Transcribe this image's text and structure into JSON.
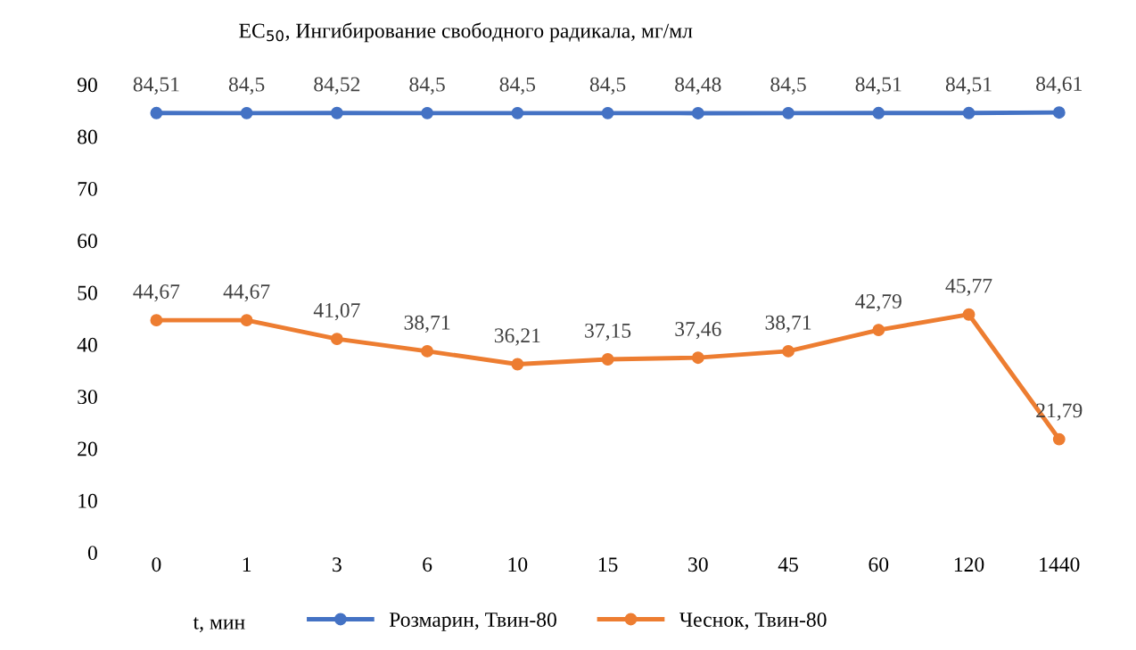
{
  "chart_data": {
    "type": "line",
    "title": "EC$_{50}$, Ингибирование свободного радикала, мг/мл",
    "xlabel": "t, мин",
    "categories": [
      "0",
      "1",
      "3",
      "6",
      "10",
      "15",
      "30",
      "45",
      "60",
      "120",
      "1440"
    ],
    "series": [
      {
        "name": "Розмарин, Твин-80",
        "color": "#4472c4",
        "values": [
          84.51,
          84.5,
          84.52,
          84.5,
          84.5,
          84.5,
          84.48,
          84.5,
          84.51,
          84.51,
          84.61
        ],
        "value_labels": [
          "84,51",
          "84,5",
          "84,52",
          "84,5",
          "84,5",
          "84,5",
          "84,48",
          "84,5",
          "84,51",
          "84,51",
          "84,61"
        ]
      },
      {
        "name": "Чеснок, Твин-80",
        "color": "#ed7d31",
        "values": [
          44.67,
          44.67,
          41.07,
          38.71,
          36.21,
          37.15,
          37.46,
          38.71,
          42.79,
          45.77,
          21.79
        ],
        "value_labels": [
          "44,67",
          "44,67",
          "41,07",
          "38,71",
          "36,21",
          "37,15",
          "37,46",
          "38,71",
          "42,79",
          "45,77",
          "21,79"
        ]
      }
    ],
    "ylim": [
      0,
      90
    ],
    "yticks": [
      0,
      10,
      20,
      30,
      40,
      50,
      60,
      70,
      80,
      90
    ],
    "marker": "circle",
    "line_style": "solid",
    "legend": "bottom",
    "grid": false
  }
}
